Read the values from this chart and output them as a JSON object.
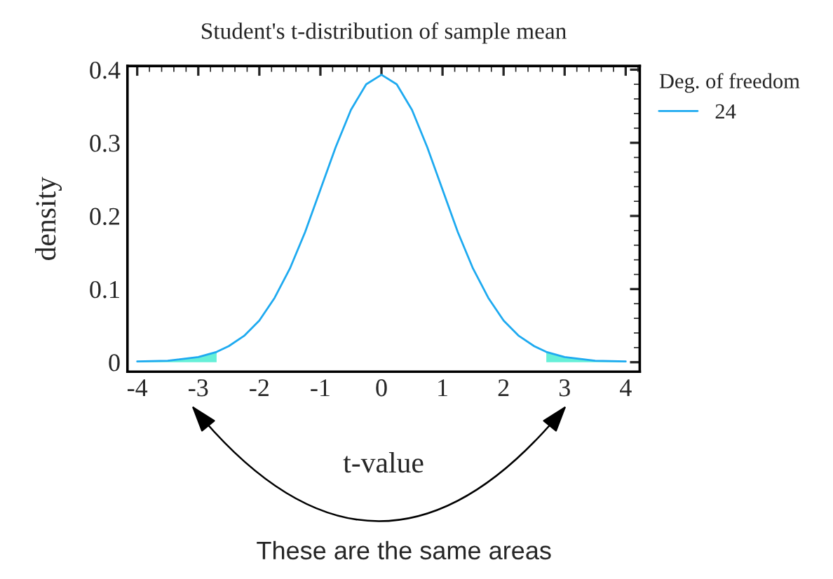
{
  "chart_data": {
    "type": "line",
    "title": "Student's t-distribution of sample mean",
    "xlabel": "t-value",
    "ylabel": "density",
    "legend_title": "Deg. of freedom",
    "legend": "top right",
    "series": [
      {
        "name": "24",
        "color": "#1eaaf0",
        "x": [
          -4,
          -3.5,
          -3,
          -2.7,
          -2.5,
          -2.25,
          -2,
          -1.75,
          -1.5,
          -1.25,
          -1,
          -0.75,
          -0.5,
          -0.25,
          0,
          0.25,
          0.5,
          0.75,
          1,
          1.25,
          1.5,
          1.75,
          2,
          2.25,
          2.5,
          2.7,
          3,
          3.5,
          4
        ],
        "values": [
          0.001,
          0.002,
          0.007,
          0.014,
          0.022,
          0.036,
          0.057,
          0.088,
          0.128,
          0.178,
          0.236,
          0.294,
          0.345,
          0.38,
          0.393,
          0.38,
          0.345,
          0.294,
          0.236,
          0.178,
          0.128,
          0.088,
          0.057,
          0.036,
          0.022,
          0.014,
          0.007,
          0.002,
          0.001
        ]
      },
      {
        "type": "area",
        "color": "#66f0d8",
        "x": [
          -4,
          -3.5,
          -3,
          -2.7
        ],
        "values": [
          0.001,
          0.002,
          0.007,
          0.014
        ]
      },
      {
        "type": "area",
        "color": "#66f0d8",
        "x": [
          2.7,
          3,
          3.5,
          4
        ],
        "values": [
          0.014,
          0.007,
          0.002,
          0.001
        ]
      }
    ],
    "xlim": [
      -4.16,
      4.23
    ],
    "ylim": [
      -0.013,
      0.405
    ],
    "xticks": [
      -4,
      -3,
      -2,
      -1,
      0,
      1,
      2,
      3,
      4
    ],
    "yticks": [
      0,
      0.1,
      0.2,
      0.3,
      0.4
    ],
    "grid": false,
    "annotations": [
      "These are the same areas"
    ]
  }
}
